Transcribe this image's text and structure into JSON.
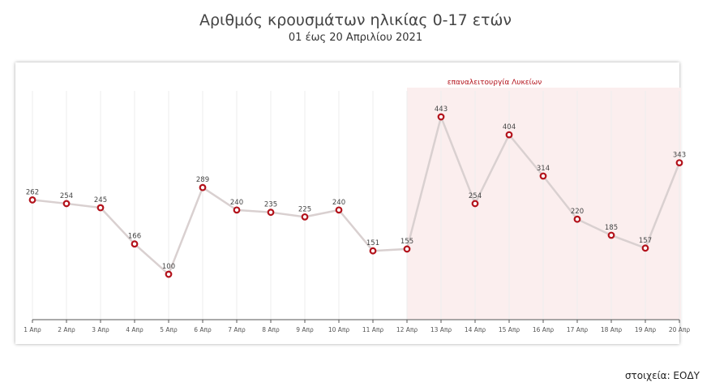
{
  "chart_data": {
    "type": "line",
    "title": "Αριθμός κρουσμάτων ηλικίας 0-17 ετών",
    "subtitle": "01 έως 20 Απριλίου 2021",
    "categories": [
      "1 Απρ",
      "2 Απρ",
      "3 Απρ",
      "4 Απρ",
      "5 Απρ",
      "6 Απρ",
      "7 Απρ",
      "8 Απρ",
      "9 Απρ",
      "10 Απρ",
      "11 Απρ",
      "12 Απρ",
      "13 Απρ",
      "14 Απρ",
      "15 Απρ",
      "16 Απρ",
      "17 Απρ",
      "18 Απρ",
      "19 Απρ",
      "20 Απρ"
    ],
    "values": [
      262,
      254,
      245,
      166,
      100,
      289,
      240,
      235,
      225,
      240,
      151,
      155,
      443,
      254,
      404,
      314,
      220,
      185,
      157,
      343
    ],
    "ylim": [
      0,
      443
    ],
    "xlabel": "",
    "ylabel": "",
    "grid": "vertical",
    "annotation": {
      "label": "επαναλειτουργία Λυκείων",
      "from": "12 Απρ",
      "to": "20 Απρ"
    },
    "colors": {
      "line": "#d9d0d0",
      "marker": "#b3121b",
      "shade": "#fbeeee",
      "annotation": "#b3121b"
    }
  },
  "source": "στοιχεία: ΕΟΔΥ"
}
